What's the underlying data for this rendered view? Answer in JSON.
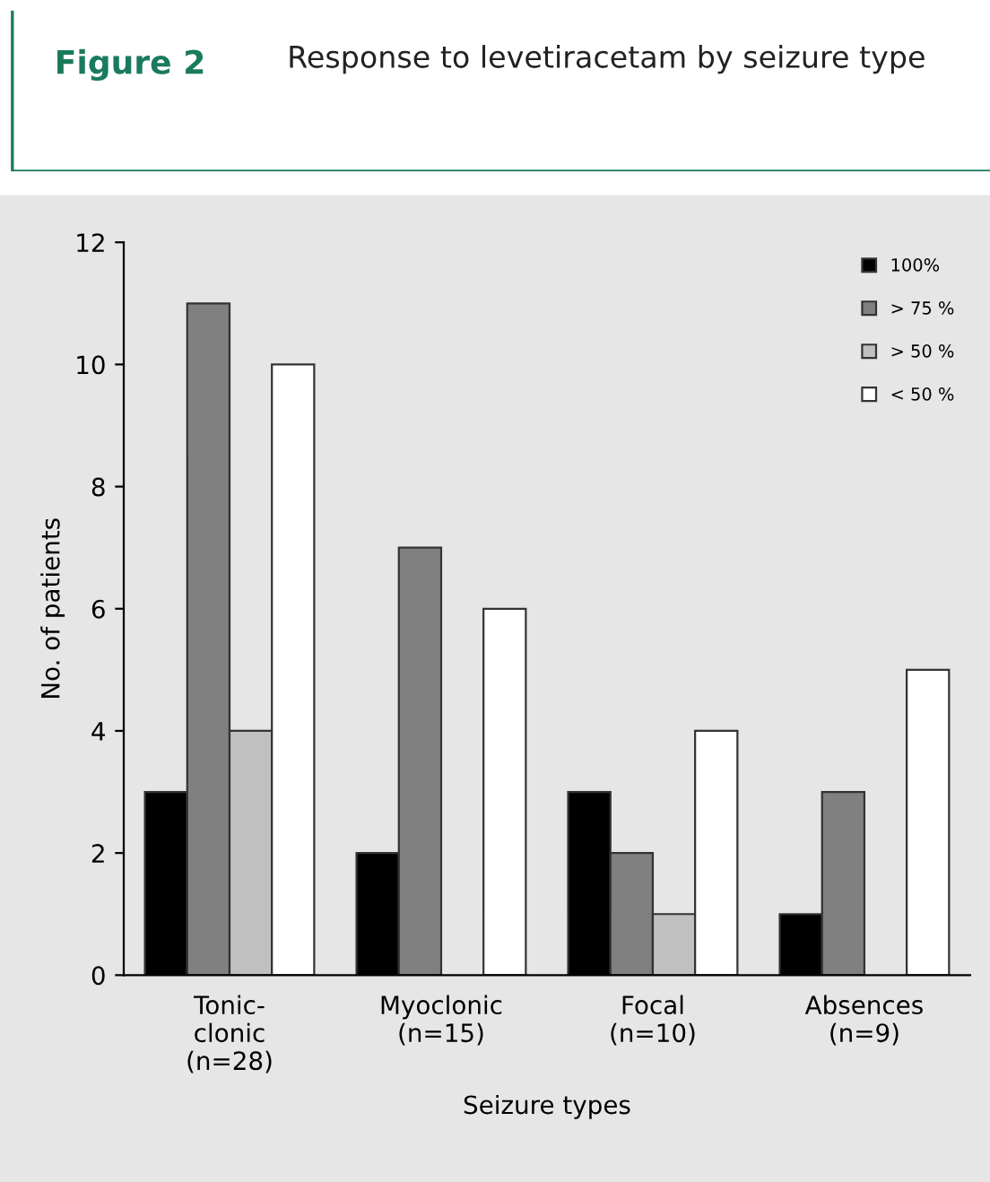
{
  "chart_data": {
    "type": "bar",
    "title": "Figure 2",
    "subtitle": "Response to levetiracetam by seizure type",
    "xlabel": "Seizure types",
    "ylabel": "No. of patients",
    "categories": [
      "Tonic-\nclonic\n(n=28)",
      "Myoclonic\n(n=15)",
      "Focal\n(n=10)",
      "Absences\n(n=9)"
    ],
    "series": [
      {
        "name": "100%",
        "color": "#000000",
        "values": [
          3,
          2,
          3,
          1
        ]
      },
      {
        "name": "> 75 %",
        "color": "#808080",
        "values": [
          11,
          7,
          2,
          3
        ]
      },
      {
        "name": "> 50 %",
        "color": "#c0c0c0",
        "values": [
          4,
          null,
          1,
          null
        ]
      },
      {
        "name": "< 50 %",
        "color": "#ffffff",
        "values": [
          10,
          6,
          4,
          5
        ]
      }
    ],
    "ylim": [
      0,
      12
    ],
    "yticks": [
      0,
      2,
      4,
      6,
      8,
      10,
      12
    ],
    "grid": false,
    "legend": "top right"
  }
}
